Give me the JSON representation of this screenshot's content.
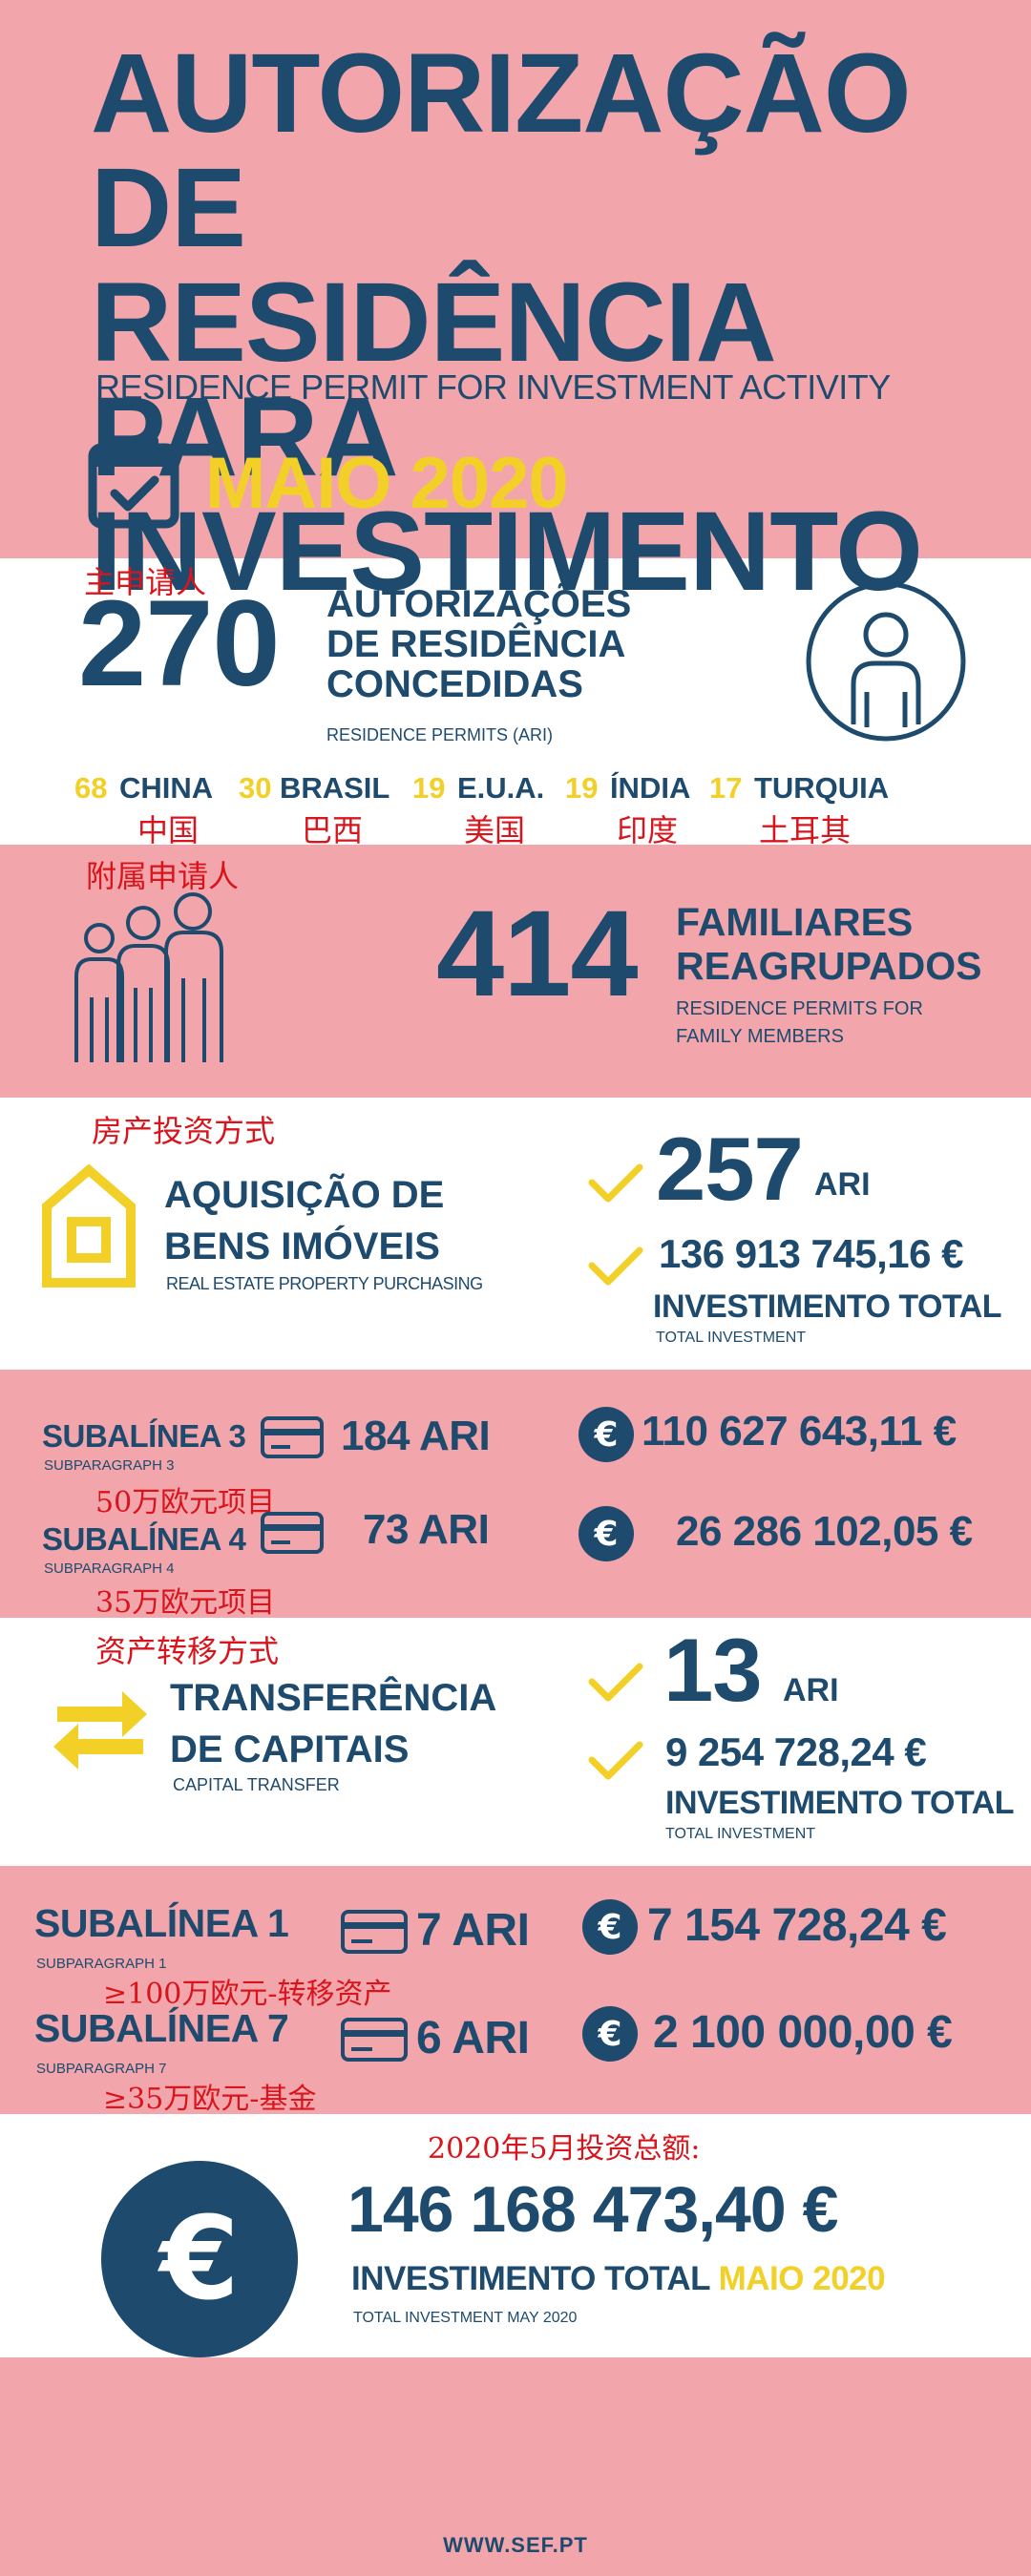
{
  "header": {
    "title_line1": "AUTORIZAÇÃO DE",
    "title_line2": "RESIDÊNCIA PARA",
    "title_line3": "INVESTIMENTO",
    "subtitle": "RESIDENCE PERMIT FOR INVESTMENT ACTIVITY",
    "period": "MAIO 2020"
  },
  "main_applicants": {
    "note_cn": "主申请人",
    "count": "270",
    "label_line1": "AUTORIZAÇÕES",
    "label_line2": "DE RESIDÊNCIA",
    "label_line3": "CONCEDIDAS",
    "label_en": "RESIDENCE PERMITS  (ARI)",
    "countries": [
      {
        "num": "68",
        "name": "CHINA",
        "cn": "中国"
      },
      {
        "num": "30",
        "name": "BRASIL",
        "cn": "巴西"
      },
      {
        "num": "19",
        "name": "E.U.A.",
        "cn": "美国"
      },
      {
        "num": "19",
        "name": "ÍNDIA",
        "cn": "印度"
      },
      {
        "num": "17",
        "name": "TURQUIA",
        "cn": "土耳其"
      }
    ]
  },
  "family": {
    "note_cn": "附属申请人",
    "count": "414",
    "label_line1": "FAMILIARES",
    "label_line2": "REAGRUPADOS",
    "label_en_line1": "RESIDENCE PERMITS FOR",
    "label_en_line2": "FAMILY MEMBERS"
  },
  "real_estate": {
    "note_cn": "房产投资方式",
    "label_line1": "AQUISIÇÃO DE",
    "label_line2": "BENS IMÓVEIS",
    "label_en": "REAL ESTATE PROPERTY PURCHASING",
    "ari_count": "257",
    "ari_unit": "ARI",
    "amount": "136 913 745,16 €",
    "total_label": "INVESTIMENTO TOTAL",
    "total_label_en": "TOTAL INVESTMENT"
  },
  "real_estate_sub": {
    "items": [
      {
        "title": "SUBALÍNEA 3",
        "title_en": "SUBPARAGRAPH 3",
        "ari": "184 ARI",
        "amount": "110 627 643,11 €",
        "note_cn": "50万欧元项目"
      },
      {
        "title": "SUBALÍNEA 4",
        "title_en": "SUBPARAGRAPH 4",
        "ari": "73 ARI",
        "amount": "26 286 102,05 €",
        "note_cn": "35万欧元项目"
      }
    ]
  },
  "capital": {
    "note_cn": "资产转移方式",
    "label_line1": "TRANSFERÊNCIA",
    "label_line2": "DE CAPITAIS",
    "label_en": "CAPITAL TRANSFER",
    "ari_count": "13",
    "ari_unit": "ARI",
    "amount": "9 254 728,24 €",
    "total_label": "INVESTIMENTO TOTAL",
    "total_label_en": "TOTAL INVESTMENT"
  },
  "capital_sub": {
    "items": [
      {
        "title": "SUBALÍNEA 1",
        "title_en": "SUBPARAGRAPH 1",
        "ari": "7 ARI",
        "amount": "7 154 728,24 €",
        "note_cn": "≥100万欧元-转移资产"
      },
      {
        "title": "SUBALÍNEA 7",
        "title_en": "SUBPARAGRAPH 7",
        "ari": "6 ARI",
        "amount": "2 100 000,00 €",
        "note_cn": "≥35万欧元-基金"
      }
    ]
  },
  "grand_total": {
    "note_cn": "2020年5月投资总额:",
    "amount": "146 168 473,40 €",
    "label": "INVESTIMENTO TOTAL",
    "label_period": "MAIO 2020",
    "label_en": "TOTAL INVESTMENT MAY 2020"
  },
  "footer": {
    "url": "WWW.SEF.PT"
  },
  "colors": {
    "navy": "#1d4a6d",
    "pink": "#f2a6ab",
    "yellow": "#f2d027",
    "red": "#d8141c"
  }
}
